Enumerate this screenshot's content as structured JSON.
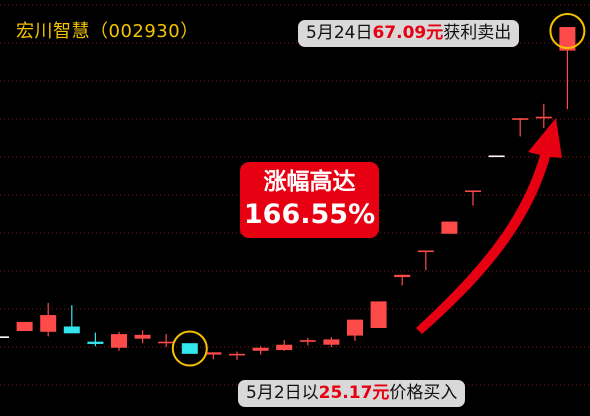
{
  "header": {
    "title": "宏川智慧（002930）"
  },
  "notes": {
    "sell": {
      "pre": "5月24日",
      "price": "67.09元",
      "post": "获利卖出"
    },
    "buy": {
      "pre": "5月2日以",
      "price": "25.17元",
      "post": "价格买入"
    }
  },
  "gain": {
    "label": "涨幅高达",
    "value": "166.55%"
  },
  "colors": {
    "up": "#ff4a4a",
    "down": "#33e6ee",
    "neutral": "#ffffff",
    "accent": "#e60012",
    "title": "#f5c400",
    "circle": "#f7c200",
    "grid": "#8b1a1a"
  },
  "chart_data": {
    "type": "candlestick",
    "ylim": [
      20,
      70
    ],
    "grid": "horizontal dotted",
    "candles": [
      {
        "o": 26.4,
        "c": 26.4,
        "h": 26.4,
        "l": 26.4
      },
      {
        "o": 27.1,
        "c": 28.3,
        "h": 28.3,
        "l": 27.1
      },
      {
        "o": 27.0,
        "c": 29.2,
        "h": 30.8,
        "l": 26.4
      },
      {
        "o": 27.7,
        "c": 26.8,
        "h": 30.5,
        "l": 26.8
      },
      {
        "o": 25.7,
        "c": 25.4,
        "h": 26.9,
        "l": 25.1
      },
      {
        "o": 24.9,
        "c": 26.7,
        "h": 27.0,
        "l": 24.5
      },
      {
        "o": 26.1,
        "c": 26.6,
        "h": 27.2,
        "l": 25.5
      },
      {
        "o": 25.7,
        "c": 25.7,
        "h": 26.7,
        "l": 25.0
      },
      {
        "o": 25.5,
        "c": 24.1,
        "h": 25.5,
        "l": 24.1
      },
      {
        "o": 24.0,
        "c": 24.3,
        "h": 24.3,
        "l": 23.4
      },
      {
        "o": 24.1,
        "c": 24.1,
        "h": 24.4,
        "l": 23.3
      },
      {
        "o": 24.5,
        "c": 24.9,
        "h": 25.1,
        "l": 24.0
      },
      {
        "o": 24.6,
        "c": 25.3,
        "h": 25.9,
        "l": 24.5
      },
      {
        "o": 25.7,
        "c": 25.9,
        "h": 26.2,
        "l": 25.2
      },
      {
        "o": 25.3,
        "c": 26.0,
        "h": 26.3,
        "l": 25.0
      },
      {
        "o": 26.5,
        "c": 28.6,
        "h": 28.6,
        "l": 25.8
      },
      {
        "o": 27.5,
        "c": 31.0,
        "h": 31.0,
        "l": 27.5
      },
      {
        "o": 34.2,
        "c": 34.5,
        "h": 34.5,
        "l": 33.1
      },
      {
        "o": 37.7,
        "c": 37.7,
        "h": 37.7,
        "l": 35.1
      },
      {
        "o": 39.9,
        "c": 41.5,
        "h": 41.5,
        "l": 39.9
      },
      {
        "o": 45.6,
        "c": 45.6,
        "h": 45.6,
        "l": 43.6
      },
      {
        "o": 50.2,
        "c": 50.2,
        "h": 50.2,
        "l": 50.2
      },
      {
        "o": 55.1,
        "c": 55.1,
        "h": 55.1,
        "l": 52.7
      },
      {
        "o": 55.1,
        "c": 55.3,
        "h": 57.0,
        "l": 53.8
      },
      {
        "o": 64.0,
        "c": 67.1,
        "h": 67.1,
        "l": 56.3
      }
    ],
    "buy_index": 8,
    "sell_index": 24
  }
}
